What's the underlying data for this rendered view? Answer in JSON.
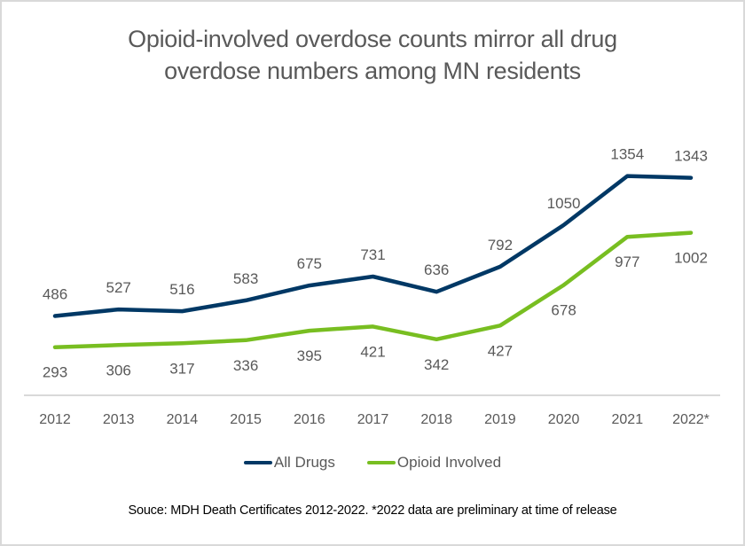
{
  "chart_data": {
    "type": "line",
    "title": "Opioid-involved overdose counts mirror all drug overdose numbers among MN residents",
    "title_lines": [
      "Opioid-involved overdose counts mirror all drug",
      "overdose numbers among MN residents"
    ],
    "categories": [
      "2012",
      "2013",
      "2014",
      "2015",
      "2016",
      "2017",
      "2018",
      "2019",
      "2020",
      "2021",
      "2022*"
    ],
    "series": [
      {
        "name": "All Drugs",
        "color": "#003865",
        "values": [
          486,
          527,
          516,
          583,
          675,
          731,
          636,
          792,
          1050,
          1354,
          1343
        ],
        "label_position": "above"
      },
      {
        "name": "Opioid Involved",
        "color": "#78BE21",
        "values": [
          293,
          306,
          317,
          336,
          395,
          421,
          342,
          427,
          678,
          977,
          1002
        ],
        "label_position": "below"
      }
    ],
    "xlabel": "",
    "ylabel": "",
    "ylim": [
      0,
      1500
    ],
    "y_axis_visible": false,
    "grid": false,
    "legend": "bottom",
    "source_note": "Souce: MDH Death Certificates 2012-2022. *2022 data are preliminary at time of release"
  }
}
